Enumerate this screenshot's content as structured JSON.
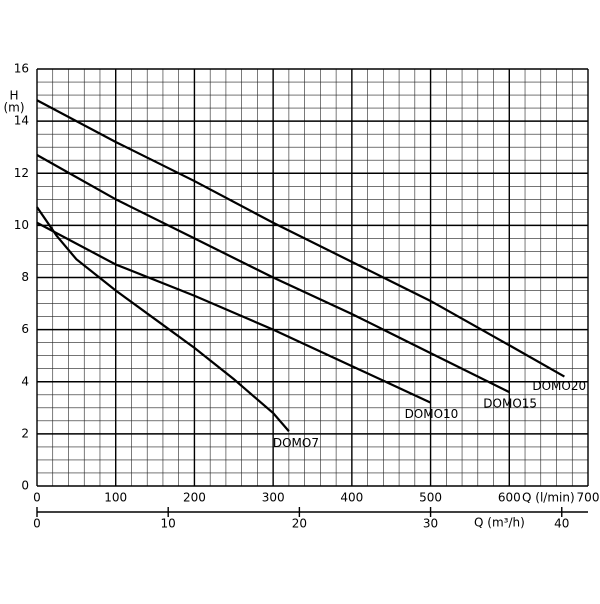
{
  "chart_data": {
    "type": "line",
    "xlabel": "Q (l/min)",
    "x2label": "Q (m³/h)",
    "ylabel": [
      "H",
      "(m)"
    ],
    "xlim": [
      0,
      700
    ],
    "xticks": [
      0,
      100,
      200,
      300,
      400,
      500,
      600,
      700
    ],
    "x2lim": [
      0,
      42
    ],
    "x2ticks": [
      0,
      10,
      20,
      30,
      40
    ],
    "ylim": [
      0,
      16
    ],
    "yticks": [
      0,
      2,
      4,
      6,
      8,
      10,
      12,
      14,
      16
    ],
    "grid": true,
    "series": [
      {
        "name": "DOMO7",
        "color": "#000000",
        "x": [
          0,
          25,
          50,
          100,
          150,
          200,
          250,
          300,
          320
        ],
        "values": [
          10.7,
          9.6,
          8.7,
          7.5,
          6.4,
          5.3,
          4.1,
          2.8,
          2.1
        ]
      },
      {
        "name": "DOMO10",
        "color": "#000000",
        "x": [
          0,
          100,
          200,
          300,
          400,
          500
        ],
        "values": [
          10.1,
          8.5,
          7.3,
          6.0,
          4.6,
          3.2
        ]
      },
      {
        "name": "DOMO15",
        "color": "#000000",
        "x": [
          0,
          100,
          200,
          300,
          400,
          500,
          600
        ],
        "values": [
          12.7,
          11.0,
          9.5,
          8.0,
          6.6,
          5.1,
          3.6
        ]
      },
      {
        "name": "DOMO20",
        "color": "#000000",
        "x": [
          0,
          100,
          200,
          300,
          400,
          500,
          600,
          670
        ],
        "values": [
          14.8,
          13.2,
          11.7,
          10.1,
          8.6,
          7.1,
          5.4,
          4.2
        ]
      }
    ]
  }
}
